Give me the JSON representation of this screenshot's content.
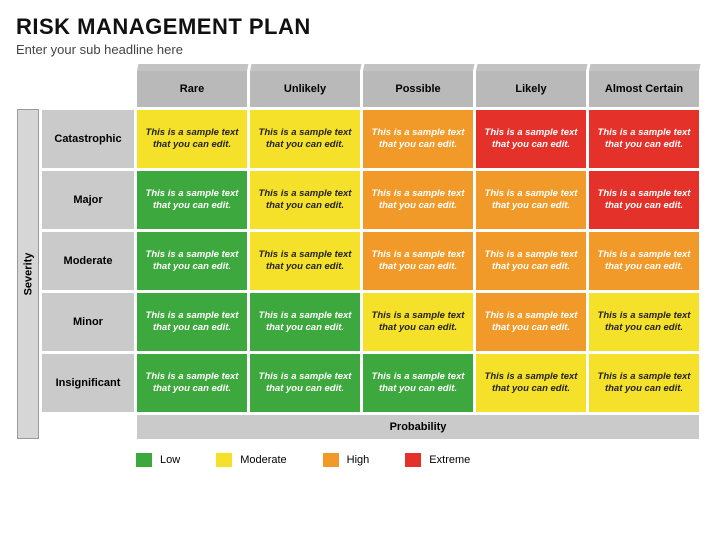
{
  "title": "RISK MANAGEMENT PLAN",
  "subtitle": "Enter your sub headline here",
  "axis": {
    "x_label": "Probability",
    "y_label": "Severity"
  },
  "probability_labels": [
    "Rare",
    "Unlikely",
    "Possible",
    "Likely",
    "Almost Certain"
  ],
  "severity_labels": [
    "Catastrophic",
    "Major",
    "Moderate",
    "Minor",
    "Insignificant"
  ],
  "cell_sample_text": "This is a sample text that you can edit.",
  "risk_levels": {
    "low": {
      "label": "Low",
      "color": "#3da83d",
      "text": "#ffffff"
    },
    "moderate": {
      "label": "Moderate",
      "color": "#f5e12a",
      "text": "#222222"
    },
    "high": {
      "label": "High",
      "color": "#f19a2a",
      "text": "#ffffff"
    },
    "extreme": {
      "label": "Extreme",
      "color": "#e4322b",
      "text": "#ffffff"
    }
  },
  "matrix_levels": [
    [
      "moderate",
      "moderate",
      "high",
      "extreme",
      "extreme"
    ],
    [
      "low",
      "moderate",
      "high",
      "high",
      "extreme"
    ],
    [
      "low",
      "moderate",
      "high",
      "high",
      "high"
    ],
    [
      "low",
      "low",
      "moderate",
      "high",
      "moderate"
    ],
    [
      "low",
      "low",
      "low",
      "moderate",
      "moderate"
    ]
  ],
  "style": {
    "header_bg": "#b9b9b9",
    "row_header_bg": "#cacaca",
    "background": "#ffffff",
    "title_fontsize": 22,
    "cell_fontsize": 9.5,
    "header_fontsize": 11,
    "cell_font_style": "italic"
  },
  "legend_order": [
    "low",
    "moderate",
    "high",
    "extreme"
  ]
}
